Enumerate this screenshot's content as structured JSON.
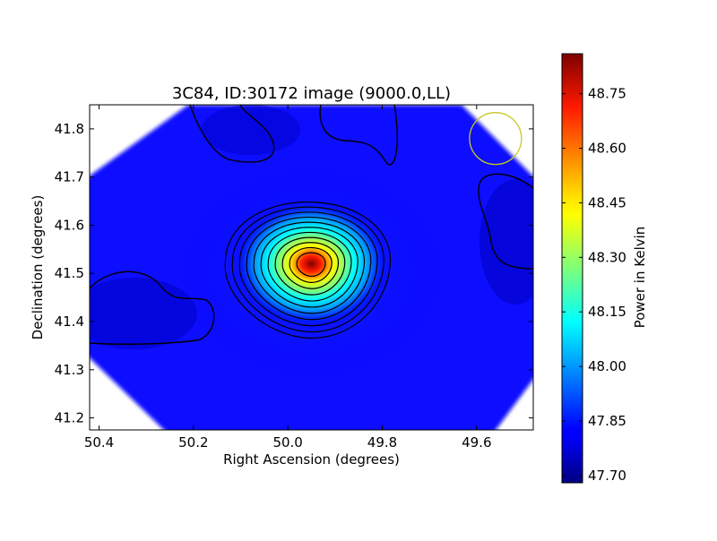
{
  "chart_data": {
    "type": "heatmap",
    "title": "3C84, ID:30172 image (9000.0,LL)",
    "xlabel": "Right Ascension (degrees)",
    "ylabel": "Declination (degrees)",
    "xlim": [
      50.42,
      49.48
    ],
    "ylim": [
      41.175,
      41.85
    ],
    "x_ticks": [
      50.4,
      50.2,
      50.0,
      49.8,
      49.6
    ],
    "x_tick_labels": [
      "50.4",
      "50.2",
      "50.0",
      "49.8",
      "49.6"
    ],
    "y_ticks": [
      41.2,
      41.3,
      41.4,
      41.5,
      41.6,
      41.7,
      41.8
    ],
    "y_tick_labels": [
      "41.2",
      "41.3",
      "41.4",
      "41.5",
      "41.6",
      "41.7",
      "41.8"
    ],
    "colorbar": {
      "label": "Power in Kelvin",
      "range": [
        47.68,
        48.86
      ],
      "ticks": [
        47.7,
        47.85,
        48.0,
        48.15,
        48.3,
        48.45,
        48.6,
        48.75
      ],
      "tick_labels": [
        "47.70",
        "47.85",
        "48.00",
        "48.15",
        "48.30",
        "48.45",
        "48.60",
        "48.75"
      ],
      "colormap": "jet"
    },
    "peak": {
      "ra": 49.95,
      "dec": 41.52,
      "value": 48.84
    },
    "background_level": 47.85,
    "contour_color": "#000000",
    "beam_marker": {
      "ra": 49.56,
      "dec": 41.78,
      "radius_deg": 0.055,
      "color": "#c8c828"
    },
    "grid": false
  }
}
